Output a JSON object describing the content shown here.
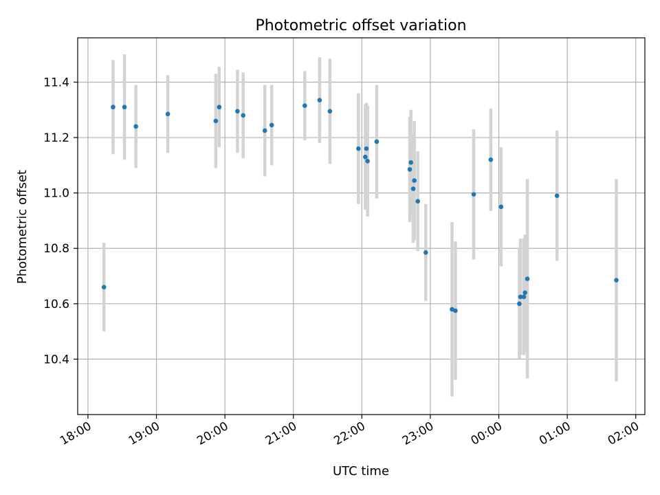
{
  "chart_data": {
    "type": "scatter",
    "title": "Photometric offset variation",
    "xlabel": "UTC time",
    "ylabel": "Photometric offset",
    "grid": true,
    "colors": {
      "point": "#1f77b4",
      "errorbar": "#d3d3d3"
    },
    "x_ticks": [
      "18:00",
      "19:00",
      "20:00",
      "21:00",
      "22:00",
      "23:00",
      "00:00",
      "01:00",
      "02:00"
    ],
    "y_ticks": [
      "10.4",
      "10.6",
      "10.8",
      "11.0",
      "11.2",
      "11.4"
    ],
    "xlim": [
      "17:51",
      "02:08"
    ],
    "ylim": [
      10.2,
      11.56
    ],
    "series": [
      {
        "points": [
          {
            "x": "18:14",
            "y": 10.66,
            "err": 0.16
          },
          {
            "x": "18:22",
            "y": 11.31,
            "err": 0.17
          },
          {
            "x": "18:32",
            "y": 11.31,
            "err": 0.19
          },
          {
            "x": "18:42",
            "y": 11.24,
            "err": 0.15
          },
          {
            "x": "19:10",
            "y": 11.285,
            "err": 0.14
          },
          {
            "x": "19:52",
            "y": 11.26,
            "err": 0.17
          },
          {
            "x": "19:55",
            "y": 11.31,
            "err": 0.145
          },
          {
            "x": "20:11",
            "y": 11.295,
            "err": 0.15
          },
          {
            "x": "20:16",
            "y": 11.28,
            "err": 0.155
          },
          {
            "x": "20:35",
            "y": 11.225,
            "err": 0.165
          },
          {
            "x": "20:41",
            "y": 11.245,
            "err": 0.145
          },
          {
            "x": "21:10",
            "y": 11.315,
            "err": 0.125
          },
          {
            "x": "21:23",
            "y": 11.335,
            "err": 0.155
          },
          {
            "x": "21:32",
            "y": 11.295,
            "err": 0.19
          },
          {
            "x": "21:57",
            "y": 11.16,
            "err": 0.2
          },
          {
            "x": "22:03",
            "y": 11.13,
            "err": 0.19
          },
          {
            "x": "22:04",
            "y": 11.16,
            "err": 0.165
          },
          {
            "x": "22:05",
            "y": 11.115,
            "err": 0.2
          },
          {
            "x": "22:13",
            "y": 11.185,
            "err": 0.205
          },
          {
            "x": "22:42",
            "y": 11.085,
            "err": 0.19
          },
          {
            "x": "22:43",
            "y": 11.11,
            "err": 0.19
          },
          {
            "x": "22:45",
            "y": 11.015,
            "err": 0.195
          },
          {
            "x": "22:46",
            "y": 11.045,
            "err": 0.215
          },
          {
            "x": "22:49",
            "y": 10.97,
            "err": 0.18
          },
          {
            "x": "22:56",
            "y": 10.785,
            "err": 0.175
          },
          {
            "x": "23:19",
            "y": 10.58,
            "err": 0.315
          },
          {
            "x": "23:22",
            "y": 10.575,
            "err": 0.25
          },
          {
            "x": "23:38",
            "y": 10.995,
            "err": 0.235
          },
          {
            "x": "23:53",
            "y": 11.12,
            "err": 0.185
          },
          {
            "x": "00:02",
            "y": 10.95,
            "err": 0.215
          },
          {
            "x": "00:18",
            "y": 10.6,
            "err": 0.2
          },
          {
            "x": "00:19",
            "y": 10.625,
            "err": 0.21
          },
          {
            "x": "00:22",
            "y": 10.625,
            "err": 0.21
          },
          {
            "x": "00:23",
            "y": 10.64,
            "err": 0.21
          },
          {
            "x": "00:25",
            "y": 10.69,
            "err": 0.36
          },
          {
            "x": "00:51",
            "y": 10.99,
            "err": 0.235
          },
          {
            "x": "01:43",
            "y": 10.685,
            "err": 0.365
          }
        ]
      }
    ]
  }
}
